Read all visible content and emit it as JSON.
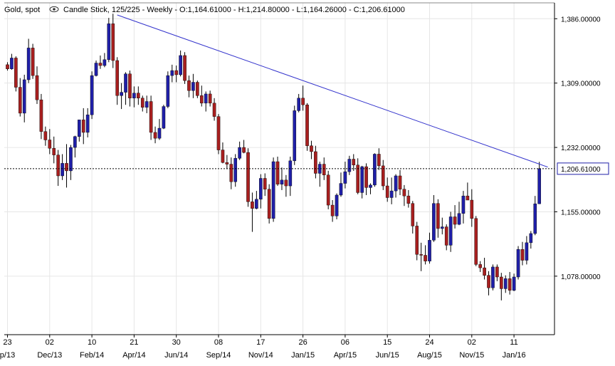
{
  "header": {
    "instrument": "Gold, spot",
    "eye_icon": "eye-icon",
    "details": "Candle Stick, 125/225 - Weekly - O:1,164.61000 - H:1,214.80000 - L:1,164.26000 - C:1,206.61000"
  },
  "colors": {
    "up": "#1f1fa8",
    "down": "#a81f1f",
    "wick": "#000000",
    "trendline": "#3333cc",
    "grid": "#e6e6e6",
    "last_label_border": "#1f1fa8"
  },
  "chart_data": {
    "type": "candlestick",
    "title": "",
    "xlabel": "",
    "ylabel": "",
    "timeframe": "Weekly",
    "bars_visible": "125/225",
    "last_bar": {
      "open": 1164.61,
      "high": 1214.8,
      "low": 1164.26,
      "close": 1206.61
    },
    "last_price_label": "1,206.61000",
    "ylim": [
      1008,
      1405
    ],
    "y_ticks": [
      {
        "value": 1386,
        "label": "1,386.00000"
      },
      {
        "value": 1309,
        "label": "1,309.00000"
      },
      {
        "value": 1232,
        "label": "1,232.00000"
      },
      {
        "value": 1155,
        "label": "1,155.00000"
      },
      {
        "value": 1078,
        "label": "1,078.00000"
      }
    ],
    "x_ticks_day": [
      "23",
      "02",
      "10",
      "21",
      "30",
      "08",
      "17",
      "26",
      "06",
      "15",
      "24",
      "02",
      "11"
    ],
    "x_ticks_month": [
      "p/13",
      "Dec/13",
      "Feb/14",
      "Apr/14",
      "Jun/14",
      "Sep/14",
      "Nov/14",
      "Jan/15",
      "Apr/15",
      "Jun/15",
      "Aug/15",
      "Nov/15",
      "Jan/16"
    ],
    "x_tick_index": [
      0,
      10,
      20,
      30,
      40,
      50,
      60,
      70,
      80,
      90,
      100,
      110,
      120
    ],
    "grid": true,
    "trendline": {
      "start_bar": 26,
      "start_price": 1390.5,
      "end_bar": 128,
      "end_price": 1208.5
    },
    "candles": [
      [
        1331.0,
        1334.0,
        1324.0,
        1326.0
      ],
      [
        1326.0,
        1344.0,
        1325.0,
        1339.0
      ],
      [
        1339.0,
        1341.0,
        1299.0,
        1304.0
      ],
      [
        1304.0,
        1315.0,
        1269.0,
        1273.0
      ],
      [
        1273.0,
        1319.0,
        1262.0,
        1313.0
      ],
      [
        1313.0,
        1362.0,
        1309.0,
        1351.0
      ],
      [
        1351.0,
        1356.0,
        1314.0,
        1318.0
      ],
      [
        1318.0,
        1329.0,
        1284.0,
        1289.0
      ],
      [
        1289.0,
        1296.0,
        1242.0,
        1251.0
      ],
      [
        1251.0,
        1257.0,
        1234.0,
        1241.0
      ],
      [
        1241.0,
        1254.0,
        1224.0,
        1231.0
      ],
      [
        1231.0,
        1245.0,
        1213.0,
        1223.0
      ],
      [
        1223.0,
        1229.0,
        1186.0,
        1198.0
      ],
      [
        1198.0,
        1224.0,
        1193.0,
        1213.0
      ],
      [
        1213.0,
        1236.0,
        1184.0,
        1204.0
      ],
      [
        1204.0,
        1235.0,
        1193.0,
        1232.0
      ],
      [
        1232.0,
        1246.0,
        1220.0,
        1245.0
      ],
      [
        1245.0,
        1265.0,
        1239.0,
        1265.0
      ],
      [
        1265.0,
        1279.0,
        1236.0,
        1250.0
      ],
      [
        1250.0,
        1279.0,
        1244.0,
        1271.0
      ],
      [
        1271.0,
        1323.0,
        1266.0,
        1318.0
      ],
      [
        1318.0,
        1336.0,
        1317.0,
        1333.0
      ],
      [
        1333.0,
        1342.0,
        1326.0,
        1330.0
      ],
      [
        1330.0,
        1345.0,
        1328.0,
        1337.0
      ],
      [
        1337.0,
        1387.0,
        1334.0,
        1380.0
      ],
      [
        1380.0,
        1392.0,
        1327.0,
        1336.0
      ],
      [
        1336.0,
        1340.0,
        1283.0,
        1294.0
      ],
      [
        1294.0,
        1309.0,
        1278.0,
        1298.0
      ],
      [
        1298.0,
        1322.0,
        1283.0,
        1320.0
      ],
      [
        1320.0,
        1324.0,
        1281.0,
        1291.0
      ],
      [
        1291.0,
        1305.0,
        1280.0,
        1297.0
      ],
      [
        1297.0,
        1305.0,
        1283.0,
        1291.0
      ],
      [
        1291.0,
        1294.0,
        1275.0,
        1280.0
      ],
      [
        1280.0,
        1294.0,
        1273.0,
        1287.0
      ],
      [
        1287.0,
        1294.0,
        1241.0,
        1250.0
      ],
      [
        1250.0,
        1257.0,
        1237.0,
        1243.0
      ],
      [
        1243.0,
        1266.0,
        1241.0,
        1255.0
      ],
      [
        1255.0,
        1283.0,
        1254.0,
        1281.0
      ],
      [
        1281.0,
        1323.0,
        1279.0,
        1318.0
      ],
      [
        1318.0,
        1331.0,
        1310.0,
        1324.0
      ],
      [
        1324.0,
        1330.0,
        1310.0,
        1319.0
      ],
      [
        1319.0,
        1348.0,
        1317.0,
        1342.0
      ],
      [
        1342.0,
        1346.0,
        1308.0,
        1312.0
      ],
      [
        1312.0,
        1318.0,
        1292.0,
        1300.0
      ],
      [
        1300.0,
        1320.0,
        1291.0,
        1310.0
      ],
      [
        1310.0,
        1312.0,
        1291.0,
        1294.0
      ],
      [
        1294.0,
        1306.0,
        1281.0,
        1285.0
      ],
      [
        1285.0,
        1299.0,
        1275.0,
        1296.0
      ],
      [
        1296.0,
        1300.0,
        1281.0,
        1285.0
      ],
      [
        1285.0,
        1291.0,
        1264.0,
        1269.0
      ],
      [
        1269.0,
        1272.0,
        1224.0,
        1229.0
      ],
      [
        1229.0,
        1238.0,
        1213.0,
        1214.0
      ],
      [
        1214.0,
        1223.0,
        1206.0,
        1212.0
      ],
      [
        1212.0,
        1220.0,
        1182.0,
        1191.0
      ],
      [
        1191.0,
        1224.0,
        1185.0,
        1219.0
      ],
      [
        1219.0,
        1239.0,
        1217.0,
        1232.0
      ],
      [
        1232.0,
        1241.0,
        1225.0,
        1226.0
      ],
      [
        1226.0,
        1231.0,
        1161.0,
        1167.0
      ],
      [
        1167.0,
        1178.0,
        1131.0,
        1159.0
      ],
      [
        1159.0,
        1180.0,
        1158.0,
        1170.0
      ],
      [
        1170.0,
        1200.0,
        1159.0,
        1195.0
      ],
      [
        1195.0,
        1201.0,
        1174.0,
        1182.0
      ],
      [
        1182.0,
        1188.0,
        1141.0,
        1147.0
      ],
      [
        1147.0,
        1220.0,
        1143.0,
        1215.0
      ],
      [
        1215.0,
        1221.0,
        1186.0,
        1188.0
      ],
      [
        1188.0,
        1208.0,
        1181.0,
        1193.0
      ],
      [
        1193.0,
        1199.0,
        1173.0,
        1186.0
      ],
      [
        1186.0,
        1221.0,
        1174.0,
        1216.0
      ],
      [
        1216.0,
        1282.0,
        1211.0,
        1276.0
      ],
      [
        1276.0,
        1296.0,
        1274.0,
        1291.0
      ],
      [
        1291.0,
        1306.0,
        1276.0,
        1283.0
      ],
      [
        1283.0,
        1285.0,
        1228.0,
        1234.0
      ],
      [
        1234.0,
        1240.0,
        1218.0,
        1227.0
      ],
      [
        1227.0,
        1234.0,
        1195.0,
        1201.0
      ],
      [
        1201.0,
        1215.0,
        1185.0,
        1212.0
      ],
      [
        1212.0,
        1220.0,
        1193.0,
        1199.0
      ],
      [
        1199.0,
        1204.0,
        1158.0,
        1163.0
      ],
      [
        1163.0,
        1169.0,
        1143.0,
        1150.0
      ],
      [
        1150.0,
        1177.0,
        1146.0,
        1175.0
      ],
      [
        1175.0,
        1202.0,
        1173.0,
        1189.0
      ],
      [
        1189.0,
        1215.0,
        1183.0,
        1203.0
      ],
      [
        1203.0,
        1222.0,
        1199.0,
        1218.0
      ],
      [
        1218.0,
        1224.0,
        1204.0,
        1211.0
      ],
      [
        1211.0,
        1219.0,
        1176.0,
        1178.0
      ],
      [
        1178.0,
        1210.0,
        1171.0,
        1209.0
      ],
      [
        1209.0,
        1213.0,
        1175.0,
        1184.0
      ],
      [
        1184.0,
        1189.0,
        1176.0,
        1187.0
      ],
      [
        1187.0,
        1225.0,
        1185.0,
        1224.0
      ],
      [
        1224.0,
        1231.0,
        1205.0,
        1210.0
      ],
      [
        1210.0,
        1217.0,
        1181.0,
        1186.0
      ],
      [
        1186.0,
        1196.0,
        1167.0,
        1172.0
      ],
      [
        1172.0,
        1196.0,
        1164.0,
        1180.0
      ],
      [
        1180.0,
        1200.0,
        1172.0,
        1198.0
      ],
      [
        1198.0,
        1205.0,
        1175.0,
        1182.0
      ],
      [
        1182.0,
        1187.0,
        1162.0,
        1174.0
      ],
      [
        1174.0,
        1181.0,
        1160.0,
        1165.0
      ],
      [
        1165.0,
        1168.0,
        1129.0,
        1138.0
      ],
      [
        1138.0,
        1143.0,
        1097.0,
        1104.0
      ],
      [
        1104.0,
        1118.0,
        1084.0,
        1103.0
      ],
      [
        1103.0,
        1115.0,
        1092.0,
        1096.0
      ],
      [
        1096.0,
        1130.0,
        1093.0,
        1121.0
      ],
      [
        1121.0,
        1175.0,
        1119.0,
        1165.0
      ],
      [
        1165.0,
        1170.0,
        1124.0,
        1135.0
      ],
      [
        1135.0,
        1148.0,
        1128.0,
        1137.0
      ],
      [
        1137.0,
        1140.0,
        1109.0,
        1115.0
      ],
      [
        1115.0,
        1155.0,
        1107.0,
        1149.0
      ],
      [
        1149.0,
        1163.0,
        1135.0,
        1140.0
      ],
      [
        1140.0,
        1167.0,
        1139.0,
        1153.0
      ],
      [
        1153.0,
        1180.0,
        1141.0,
        1174.0
      ],
      [
        1174.0,
        1190.0,
        1170.0,
        1169.0
      ],
      [
        1169.0,
        1182.0,
        1137.0,
        1147.0
      ],
      [
        1147.0,
        1150.0,
        1090.0,
        1092.0
      ],
      [
        1092.0,
        1096.0,
        1083.0,
        1088.0
      ],
      [
        1088.0,
        1100.0,
        1074.0,
        1079.0
      ],
      [
        1079.0,
        1084.0,
        1055.0,
        1064.0
      ],
      [
        1064.0,
        1092.0,
        1061.0,
        1089.0
      ],
      [
        1089.0,
        1092.0,
        1072.0,
        1077.0
      ],
      [
        1077.0,
        1082.0,
        1049.0,
        1063.0
      ],
      [
        1063.0,
        1079.0,
        1058.0,
        1075.0
      ],
      [
        1075.0,
        1083.0,
        1056.0,
        1061.0
      ],
      [
        1061.0,
        1081.0,
        1060.0,
        1077.0
      ],
      [
        1077.0,
        1114.0,
        1074.0,
        1110.0
      ],
      [
        1110.0,
        1119.0,
        1091.0,
        1097.0
      ],
      [
        1097.0,
        1126.0,
        1092.0,
        1118.0
      ],
      [
        1118.0,
        1132.0,
        1111.0,
        1129.0
      ],
      [
        1129.0,
        1174.0,
        1127.0,
        1164.61
      ],
      [
        1164.61,
        1214.8,
        1164.26,
        1206.61
      ]
    ]
  }
}
